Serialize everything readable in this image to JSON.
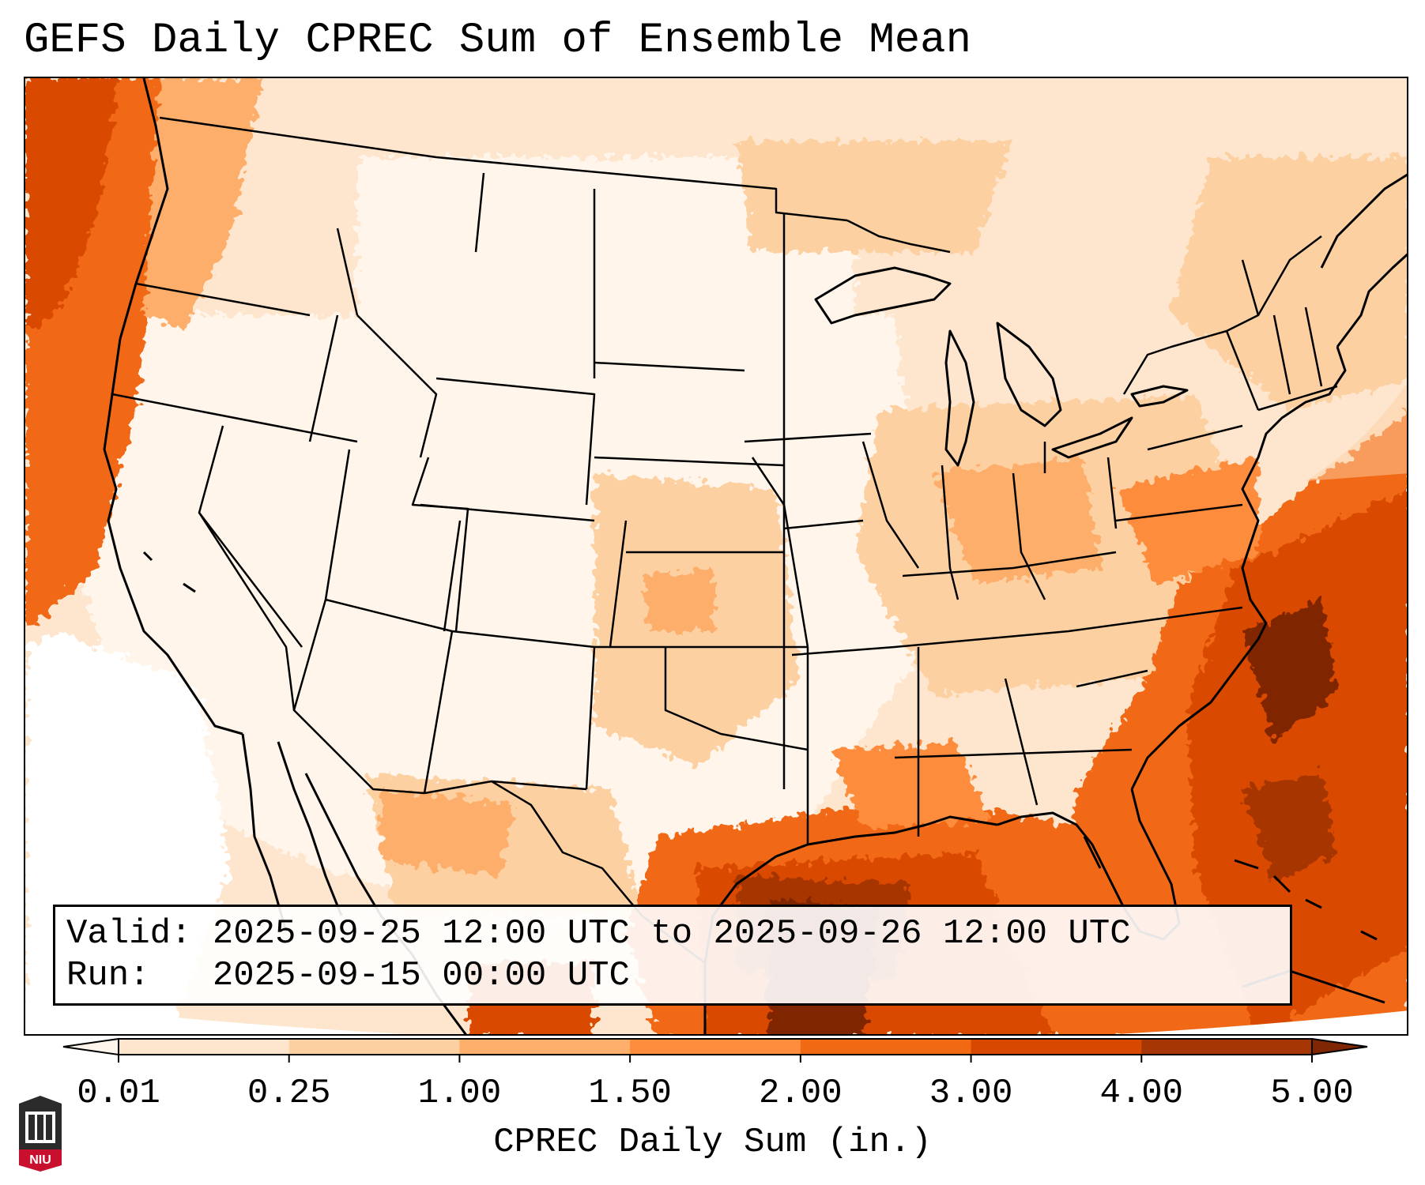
{
  "title": "GEFS Daily CPREC Sum of Ensemble Mean",
  "info": {
    "valid_label": "Valid:",
    "valid_value": "2025-09-25 12:00 UTC to 2025-09-26 12:00 UTC",
    "run_label": "Run:",
    "run_value": "2025-09-15 00:00 UTC"
  },
  "colorbar": {
    "label": "CPREC Daily Sum (in.)",
    "ticks": [
      "0.01",
      "0.25",
      "1.00",
      "1.50",
      "2.00",
      "3.00",
      "4.00",
      "5.00"
    ],
    "colors": [
      "#fff5eb",
      "#fee6ce",
      "#fdd0a2",
      "#fdae6b",
      "#fd8d3c",
      "#f16913",
      "#d94801",
      "#a63603",
      "#7f2704"
    ],
    "extend": "both"
  },
  "map": {
    "projection": "lambert-conformal",
    "region": "CONUS",
    "precip_max_region": "Gulf of Mexico / western Atlantic",
    "boundary_color": "#000000"
  },
  "logo": {
    "text": "NIU",
    "color": "#c8102e"
  }
}
